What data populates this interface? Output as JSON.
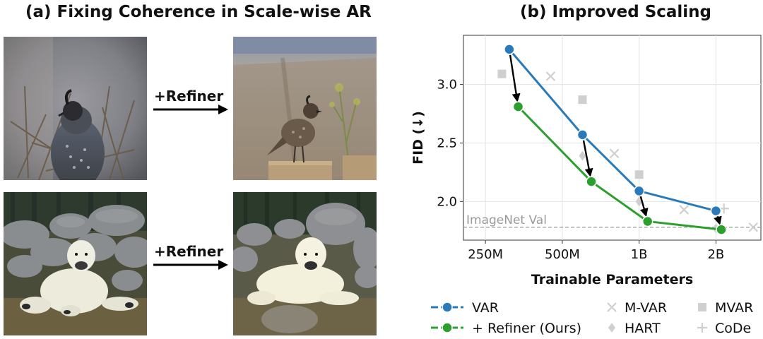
{
  "panel_a": {
    "title": "(a) Fixing Coherence in Scale-wise AR",
    "arrow_label_1": "+Refiner",
    "arrow_label_2": "+Refiner",
    "images": [
      {
        "name": "quail-before",
        "description": "quail on branches"
      },
      {
        "name": "quail-after",
        "description": "quail on stone wall"
      },
      {
        "name": "polar-bear-before",
        "description": "polar bear among rocks"
      },
      {
        "name": "polar-bear-after",
        "description": "polar bear lying on rock"
      }
    ]
  },
  "panel_b": {
    "title": "(b) Improved Scaling"
  },
  "chart_data": {
    "type": "line",
    "title": "(b) Improved Scaling",
    "xlabel": "Trainable Parameters",
    "ylabel": "FID (↓)",
    "x_scale": "log",
    "x_ticks": [
      250,
      500,
      1000,
      2000
    ],
    "x_tick_labels": [
      "250M",
      "500M",
      "1B",
      "2B"
    ],
    "xlim": [
      205,
      3000
    ],
    "y_ticks": [
      2.0,
      2.5,
      3.0
    ],
    "y_tick_labels": [
      "2.0",
      "2.5",
      "3.0"
    ],
    "ylim": [
      1.67,
      3.42
    ],
    "grid": true,
    "reference_line": {
      "label": "ImageNet Val",
      "y": 1.78
    },
    "series": [
      {
        "name": "VAR",
        "color": "#2a7ab9",
        "x": [
          310,
          600,
          1000,
          2000
        ],
        "y": [
          3.3,
          2.57,
          2.09,
          1.92
        ]
      },
      {
        "name": "+ Refiner (Ours)",
        "color": "#2ca02c",
        "x": [
          336,
          650,
          1080,
          2100
        ],
        "y": [
          2.81,
          2.17,
          1.83,
          1.76
        ]
      }
    ],
    "arrows": [
      {
        "from": [
          310,
          3.3
        ],
        "to": [
          336,
          2.81
        ]
      },
      {
        "from": [
          600,
          2.57
        ],
        "to": [
          650,
          2.17
        ]
      },
      {
        "from": [
          1000,
          2.09
        ],
        "to": [
          1080,
          1.83
        ]
      },
      {
        "from": [
          2000,
          1.92
        ],
        "to": [
          2100,
          1.76
        ]
      }
    ],
    "baselines": [
      {
        "name": "M-VAR",
        "marker": "x",
        "x": [
          450,
          800,
          1500,
          2800
        ],
        "y": [
          3.07,
          2.41,
          1.93,
          1.78
        ]
      },
      {
        "name": "MVAR",
        "marker": "square",
        "x": [
          290,
          600,
          1000
        ],
        "y": [
          3.09,
          2.87,
          2.23
        ]
      },
      {
        "name": "HART",
        "marker": "diamond",
        "x": [
          600,
          1000,
          2000
        ],
        "y": [
          2.39,
          2.0,
          1.77
        ]
      },
      {
        "name": "CoDe",
        "marker": "plus",
        "x": [
          2150
        ],
        "y": [
          1.94
        ]
      }
    ],
    "legend": {
      "placement": "bottom",
      "entries": [
        {
          "label": "VAR",
          "kind": "line",
          "color": "#2a7ab9"
        },
        {
          "label": "+ Refiner (Ours)",
          "kind": "line",
          "color": "#2ca02c"
        },
        {
          "label": "M-VAR",
          "kind": "x"
        },
        {
          "label": "HART",
          "kind": "diamond"
        },
        {
          "label": "MVAR",
          "kind": "square"
        },
        {
          "label": "CoDe",
          "kind": "plus"
        }
      ]
    },
    "baseline_color": "#cfcfcf"
  }
}
